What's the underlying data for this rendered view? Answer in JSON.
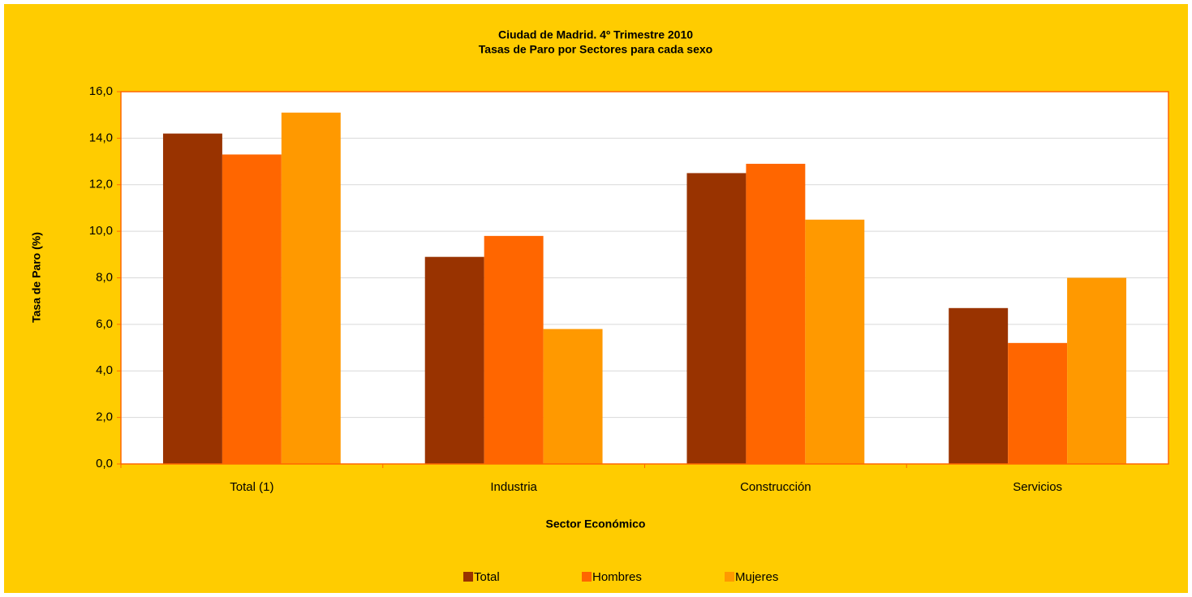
{
  "chart_data": {
    "type": "bar",
    "title": "Ciudad de Madrid. 4º Trimestre 2010",
    "subtitle": "Tasas de Paro por Sectores para cada sexo",
    "x_label": "Sector Económico",
    "y_label": "Tasa de Paro (%)",
    "categories": [
      "Total (1)",
      "Industria",
      "Construcción",
      "Servicios"
    ],
    "series": [
      {
        "name": "Total",
        "color": "#993300",
        "values": [
          14.2,
          8.9,
          12.5,
          6.7
        ]
      },
      {
        "name": "Hombres",
        "color": "#FF6600",
        "values": [
          13.3,
          9.8,
          12.9,
          5.2
        ]
      },
      {
        "name": "Mujeres",
        "color": "#FF9900",
        "values": [
          15.1,
          5.8,
          10.5,
          8.0
        ]
      }
    ],
    "ylim": [
      0,
      16
    ],
    "yticks": [
      {
        "value": 0,
        "label": "0,0"
      },
      {
        "value": 2,
        "label": "2,0"
      },
      {
        "value": 4,
        "label": "4,0"
      },
      {
        "value": 6,
        "label": "6,0"
      },
      {
        "value": 8,
        "label": "8,0"
      },
      {
        "value": 10,
        "label": "10,0"
      },
      {
        "value": 12,
        "label": "12,0"
      },
      {
        "value": 14,
        "label": "14,0"
      },
      {
        "value": 16,
        "label": "16,0"
      }
    ],
    "grid": true,
    "legend": "bottom"
  }
}
